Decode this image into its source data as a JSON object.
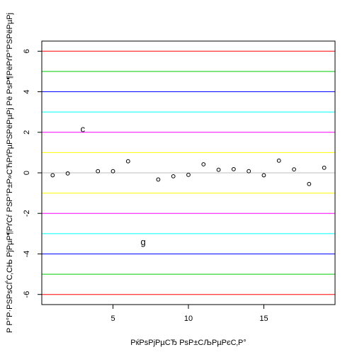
{
  "chart_data": {
    "type": "scatter",
    "xlabel": "РќРѕРјРµСЂ РѕР±СЉРµРєС‚Р°",
    "ylabel": "Р Р°Р·РЅРѕСЃС‚СЊ РјРµР¶РґСѓ РЅР°Р±Р»СЋРґРµРЅРёРµРј Рё РѕР¶РёРґР°РЅРёРµРј",
    "xlim": [
      0.28,
      19.72
    ],
    "ylim": [
      -6.5,
      6.5
    ],
    "x_ticks": [
      5,
      10,
      15
    ],
    "y_ticks": [
      -6,
      -4,
      -2,
      0,
      2,
      4,
      6
    ],
    "x_tick_labels": [
      "5",
      "10",
      "15"
    ],
    "y_tick_labels": [
      "-6",
      "-4",
      "-2",
      "0",
      "2",
      "4",
      "6"
    ],
    "grid": false,
    "reference_lines": [
      {
        "y": 6,
        "color": "#ff0000"
      },
      {
        "y": -6,
        "color": "#ff0000"
      },
      {
        "y": 5,
        "color": "#00cd00"
      },
      {
        "y": -5,
        "color": "#00cd00"
      },
      {
        "y": 4,
        "color": "#0000ff"
      },
      {
        "y": -4,
        "color": "#0000ff"
      },
      {
        "y": 3,
        "color": "#00ffff"
      },
      {
        "y": -3,
        "color": "#00ffff"
      },
      {
        "y": 2,
        "color": "#ff00ff"
      },
      {
        "y": -2,
        "color": "#ff00ff"
      },
      {
        "y": 1,
        "color": "#ffff00"
      },
      {
        "y": -1,
        "color": "#ffff00"
      },
      {
        "y": 0,
        "color": "#bebebe"
      }
    ],
    "points": [
      {
        "x": 1,
        "y": -0.12
      },
      {
        "x": 2,
        "y": -0.03
      },
      {
        "x": 4,
        "y": 0.08
      },
      {
        "x": 5,
        "y": 0.08
      },
      {
        "x": 6,
        "y": 0.57
      },
      {
        "x": 8,
        "y": -0.33
      },
      {
        "x": 9,
        "y": -0.17
      },
      {
        "x": 10,
        "y": -0.1
      },
      {
        "x": 11,
        "y": 0.42
      },
      {
        "x": 12,
        "y": 0.15
      },
      {
        "x": 13,
        "y": 0.18
      },
      {
        "x": 14,
        "y": 0.08
      },
      {
        "x": 15,
        "y": -0.12
      },
      {
        "x": 16,
        "y": 0.6
      },
      {
        "x": 17,
        "y": 0.17
      },
      {
        "x": 18,
        "y": -0.55
      },
      {
        "x": 19,
        "y": 0.25
      }
    ],
    "point_labels": [
      {
        "x": 3,
        "y": 2.15,
        "text": "c"
      },
      {
        "x": 7,
        "y": -3.42,
        "text": "g"
      }
    ]
  }
}
